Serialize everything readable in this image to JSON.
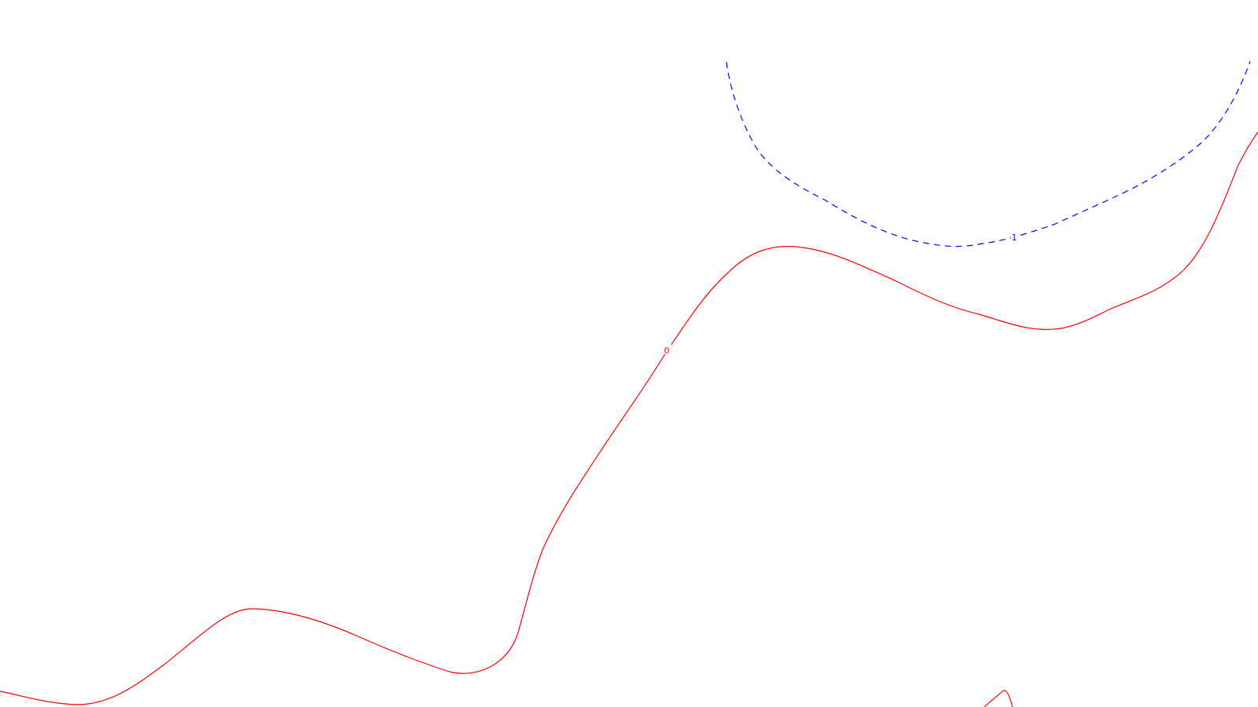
{
  "map": {
    "contours": [
      {
        "id": "contour-0",
        "label": "0",
        "color": "#ff0000",
        "line_style": "solid"
      },
      {
        "id": "contour-1",
        "label": "1",
        "color": "#0000ff",
        "line_style": "dashed"
      },
      {
        "id": "contour-fragment",
        "label": "",
        "color": "#ff0000",
        "line_style": "solid"
      }
    ]
  }
}
